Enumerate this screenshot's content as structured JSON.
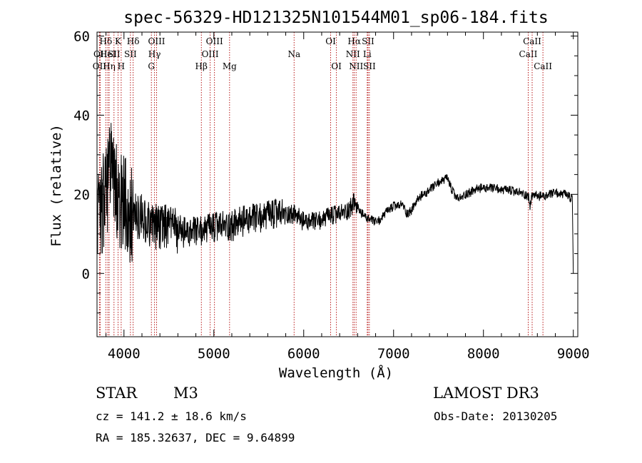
{
  "chart_data": {
    "type": "line",
    "title": "spec-56329-HD121325N101544M01_sp06-184.fits",
    "xlabel": "Wavelength (Å)",
    "ylabel": "Flux (relative)",
    "xlim": [
      3700,
      9050
    ],
    "ylim": [
      -16,
      61
    ],
    "xticks": [
      4000,
      5000,
      6000,
      7000,
      8000,
      9000
    ],
    "yticks": [
      0,
      20,
      40,
      60
    ],
    "series": [
      {
        "name": "flux",
        "seed": 184,
        "x": [
          3700,
          3760,
          3800,
          3850,
          3900,
          3950,
          4000,
          4050,
          4100,
          4200,
          4300,
          4400,
          4500,
          4600,
          4700,
          4800,
          4900,
          5000,
          5100,
          5200,
          5300,
          5400,
          5500,
          5600,
          5700,
          5800,
          5900,
          6000,
          6100,
          6200,
          6300,
          6400,
          6500,
          6560,
          6600,
          6650,
          6700,
          6750,
          6800,
          6850,
          6900,
          6950,
          7000,
          7050,
          7100,
          7150,
          7200,
          7250,
          7300,
          7350,
          7400,
          7450,
          7500,
          7550,
          7600,
          7650,
          7700,
          7750,
          7800,
          7850,
          7900,
          7950,
          8000,
          8050,
          8100,
          8150,
          8200,
          8250,
          8300,
          8350,
          8400,
          8450,
          8500,
          8520,
          8540,
          8560,
          8600,
          8650,
          8700,
          8750,
          8800,
          8850,
          8900,
          8950,
          8990,
          9000
        ],
        "y": [
          14,
          16,
          22,
          26,
          22,
          18,
          17,
          16,
          15,
          14,
          12,
          12,
          11.5,
          11,
          10,
          10.5,
          11,
          11.5,
          12,
          12,
          13,
          13.5,
          14,
          14.5,
          15,
          15,
          15,
          13,
          13,
          13.5,
          14.5,
          15,
          16,
          18,
          16.5,
          15,
          14,
          13.5,
          13,
          13.5,
          15,
          16,
          17,
          17,
          17.5,
          15,
          16,
          18,
          19.5,
          20,
          21,
          22,
          23,
          23.5,
          24,
          21,
          19,
          19,
          20,
          20.5,
          21,
          21.5,
          21.5,
          21.5,
          21.5,
          21.5,
          21,
          21,
          21,
          20.5,
          20.5,
          20,
          19.5,
          17,
          19.5,
          20,
          19.5,
          19.5,
          19.5,
          20,
          20.5,
          20,
          20,
          19.5,
          18.5,
          0
        ],
        "noise": [
          {
            "x": [
              3700,
              4100
            ],
            "amp": 13
          },
          {
            "x": [
              4100,
              4600
            ],
            "amp": 6
          },
          {
            "x": [
              4600,
              5800
            ],
            "amp": 4
          },
          {
            "x": [
              5800,
              6600
            ],
            "amp": 2.5
          },
          {
            "x": [
              6600,
              9000
            ],
            "amp": 1.2
          }
        ]
      }
    ],
    "line_markers": [
      {
        "x": 3727,
        "label": "OII",
        "row": 3
      },
      {
        "x": 3737,
        "label": "OII",
        "row": 2
      },
      {
        "x": 3798,
        "label": "Hδ",
        "row": 1
      },
      {
        "x": 3820,
        "label": "HeI",
        "row": 2
      },
      {
        "x": 3835,
        "label": "Hη",
        "row": 3
      },
      {
        "x": 3889,
        "label": "SII",
        "row": 2
      },
      {
        "x": 3934,
        "label": "K",
        "row": 1
      },
      {
        "x": 3969,
        "label": "H",
        "row": 3
      },
      {
        "x": 4072,
        "label": "SII",
        "row": 2
      },
      {
        "x": 4102,
        "label": "Hδ",
        "row": 1
      },
      {
        "x": 4305,
        "label": "G",
        "row": 3
      },
      {
        "x": 4340,
        "label": "Hγ",
        "row": 2
      },
      {
        "x": 4363,
        "label": "OIII",
        "row": 1
      },
      {
        "x": 4861,
        "label": "Hβ",
        "row": 3
      },
      {
        "x": 4959,
        "label": "OIII",
        "row": 2
      },
      {
        "x": 5007,
        "label": "OIII",
        "row": 1
      },
      {
        "x": 5175,
        "label": "Mg",
        "row": 3
      },
      {
        "x": 5893,
        "label": "Na",
        "row": 2
      },
      {
        "x": 6300,
        "label": "OI",
        "row": 1
      },
      {
        "x": 6364,
        "label": "OI",
        "row": 3
      },
      {
        "x": 6548,
        "label": "NII",
        "row": 2
      },
      {
        "x": 6563,
        "label": "Hα",
        "row": 1
      },
      {
        "x": 6583,
        "label": "NII",
        "row": 3
      },
      {
        "x": 6707,
        "label": "Li",
        "row": 2
      },
      {
        "x": 6716,
        "label": "SII",
        "row": 1
      },
      {
        "x": 6731,
        "label": "SII",
        "row": 3
      },
      {
        "x": 8498,
        "label": "CaII",
        "row": 2
      },
      {
        "x": 8542,
        "label": "CaII",
        "row": 1
      },
      {
        "x": 8662,
        "label": "CaII",
        "row": 3
      }
    ],
    "colors": {
      "axis": "#000000",
      "line": "#000000",
      "marker": "#b00000"
    }
  },
  "info": {
    "object_class": "STAR",
    "subclass": "M3",
    "survey": "LAMOST DR3",
    "cz": "cz = 141.2 ± 18.6 km/s",
    "obs_date": "Obs-Date: 20130205",
    "radec": "RA = 185.32637, DEC =    9.64899"
  }
}
